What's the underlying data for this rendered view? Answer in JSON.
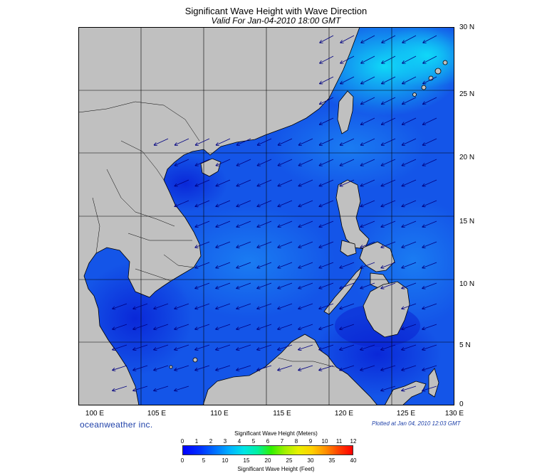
{
  "header": {
    "title": "Significant Wave Height with Wave Direction",
    "subtitle": "Valid For Jan-04-2010 18:00 GMT"
  },
  "map": {
    "extent": {
      "lon": [
        100,
        130
      ],
      "lat": [
        0,
        30
      ]
    },
    "lat_labels": [
      "30 N",
      "25 N",
      "20 N",
      "15 N",
      "10 N",
      "5 N",
      "0"
    ],
    "lon_labels": [
      "100 E",
      "105 E",
      "110 E",
      "115 E",
      "120 E",
      "125 E",
      "130 E"
    ],
    "land_color": "#c0c0c0",
    "coast_color": "#000000",
    "arrow_color": "#000080"
  },
  "footer": {
    "brand": "oceanweather inc.",
    "plotted": "Plotted at Jan 04, 2010 12:03 GMT"
  },
  "colorbar": {
    "title_meters": "Significant Wave Height (Meters)",
    "title_feet": "Significant Wave Height (Feet)",
    "meter_ticks": [
      "0",
      "1",
      "2",
      "3",
      "4",
      "5",
      "6",
      "7",
      "8",
      "9",
      "10",
      "11",
      "12"
    ],
    "feet_ticks": [
      "0",
      "5",
      "10",
      "15",
      "20",
      "25",
      "30",
      "35",
      "40"
    ]
  }
}
